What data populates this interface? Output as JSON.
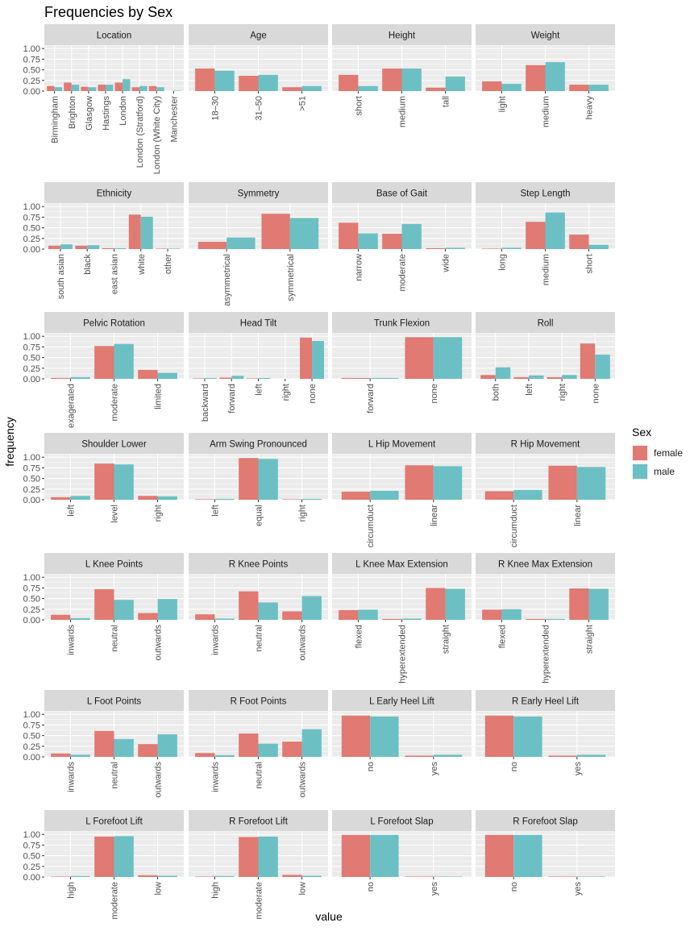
{
  "title": "Frequencies by Sex",
  "xlabel": "value",
  "ylabel": "frequency",
  "legend": {
    "title": "Sex",
    "position": "right",
    "entries": [
      {
        "label": "female",
        "color": "#E07A72"
      },
      {
        "label": "male",
        "color": "#6CC0C4"
      }
    ]
  },
  "y_ticks": [
    "0.00",
    "0.25",
    "0.50",
    "0.75",
    "1.00"
  ],
  "colors": {
    "female": "#E07A72",
    "male": "#6CC0C4",
    "panel_bg": "#EBEBEB",
    "strip_bg": "#D9D9D9",
    "grid": "#FFFFFF"
  },
  "chart_data": {
    "type": "bar",
    "ylim": [
      0,
      1.08
    ],
    "grid": true,
    "series_names": [
      "female",
      "male"
    ],
    "panels": [
      {
        "title": "Location",
        "categories": [
          "Birmingham",
          "Brighton",
          "Glasgow",
          "Hastings",
          "London",
          "London (Stratford)",
          "London (White City)",
          "Manchester"
        ],
        "female": [
          0.12,
          0.2,
          0.1,
          0.15,
          0.2,
          0.09,
          0.12,
          0.0
        ],
        "male": [
          0.09,
          0.15,
          0.09,
          0.15,
          0.28,
          0.12,
          0.09,
          0.01
        ]
      },
      {
        "title": "Age",
        "categories": [
          "18–30",
          "31–50",
          ">51"
        ],
        "female": [
          0.53,
          0.36,
          0.09
        ],
        "male": [
          0.48,
          0.38,
          0.12
        ]
      },
      {
        "title": "Height",
        "categories": [
          "short",
          "medium",
          "tall"
        ],
        "female": [
          0.38,
          0.53,
          0.08
        ],
        "male": [
          0.12,
          0.53,
          0.34
        ]
      },
      {
        "title": "Weight",
        "categories": [
          "light",
          "medium",
          "heavy"
        ],
        "female": [
          0.23,
          0.61,
          0.15
        ],
        "male": [
          0.17,
          0.68,
          0.15
        ]
      },
      {
        "title": "Ethnicity",
        "categories": [
          "south asian",
          "black",
          "east asian",
          "white",
          "other"
        ],
        "female": [
          0.08,
          0.08,
          0.02,
          0.81,
          0.01
        ],
        "male": [
          0.11,
          0.09,
          0.02,
          0.76,
          0.01
        ]
      },
      {
        "title": "Symmetry",
        "categories": [
          "asymmetrical",
          "symmetrical"
        ],
        "female": [
          0.17,
          0.83
        ],
        "male": [
          0.27,
          0.73
        ]
      },
      {
        "title": "Base of Gait",
        "categories": [
          "narrow",
          "moderate",
          "wide"
        ],
        "female": [
          0.62,
          0.36,
          0.02
        ],
        "male": [
          0.37,
          0.59,
          0.03
        ]
      },
      {
        "title": "Step Length",
        "categories": [
          "long",
          "medium",
          "short"
        ],
        "female": [
          0.01,
          0.64,
          0.34
        ],
        "male": [
          0.03,
          0.86,
          0.1
        ]
      },
      {
        "title": "Pelvic Rotation",
        "categories": [
          "exagerated",
          "moderate",
          "limited"
        ],
        "female": [
          0.02,
          0.77,
          0.21
        ],
        "male": [
          0.04,
          0.82,
          0.14
        ]
      },
      {
        "title": "Head Tilt",
        "categories": [
          "backward",
          "forward",
          "left",
          "right",
          "none"
        ],
        "female": [
          0.01,
          0.03,
          0.01,
          0.0,
          0.97
        ],
        "male": [
          0.02,
          0.07,
          0.02,
          0.0,
          0.89
        ]
      },
      {
        "title": "Trunk Flexion",
        "categories": [
          "forward",
          "none"
        ],
        "female": [
          0.02,
          0.98
        ],
        "male": [
          0.02,
          0.98
        ]
      },
      {
        "title": "Roll",
        "categories": [
          "both",
          "left",
          "right",
          "none"
        ],
        "female": [
          0.09,
          0.04,
          0.04,
          0.83
        ],
        "male": [
          0.27,
          0.08,
          0.09,
          0.57
        ]
      },
      {
        "title": "Shoulder Lower",
        "categories": [
          "left",
          "level",
          "right"
        ],
        "female": [
          0.06,
          0.85,
          0.09
        ],
        "male": [
          0.09,
          0.83,
          0.08
        ]
      },
      {
        "title": "Arm Swing Pronounced",
        "categories": [
          "left",
          "equal",
          "right"
        ],
        "female": [
          0.01,
          0.98,
          0.01
        ],
        "male": [
          0.02,
          0.96,
          0.02
        ]
      },
      {
        "title": "L Hip Movement",
        "categories": [
          "circumduct",
          "linear"
        ],
        "female": [
          0.19,
          0.81
        ],
        "male": [
          0.21,
          0.79
        ]
      },
      {
        "title": "R Hip Movement",
        "categories": [
          "circumduct",
          "linear"
        ],
        "female": [
          0.2,
          0.8
        ],
        "male": [
          0.23,
          0.77
        ]
      },
      {
        "title": "L Knee Points",
        "categories": [
          "inwards",
          "neutral",
          "outwards"
        ],
        "female": [
          0.12,
          0.72,
          0.16
        ],
        "male": [
          0.04,
          0.47,
          0.49
        ]
      },
      {
        "title": "R Knee Points",
        "categories": [
          "inwards",
          "neutral",
          "outwards"
        ],
        "female": [
          0.13,
          0.67,
          0.2
        ],
        "male": [
          0.03,
          0.41,
          0.56
        ]
      },
      {
        "title": "L Knee Max Extension",
        "categories": [
          "flexed",
          "hyperextended",
          "straight"
        ],
        "female": [
          0.23,
          0.02,
          0.75
        ],
        "male": [
          0.24,
          0.03,
          0.73
        ]
      },
      {
        "title": "R Knee Max Extension",
        "categories": [
          "flexed",
          "hyperextended",
          "straight"
        ],
        "female": [
          0.24,
          0.02,
          0.74
        ],
        "male": [
          0.25,
          0.02,
          0.73
        ]
      },
      {
        "title": "L Foot Points",
        "categories": [
          "inwards",
          "neutral",
          "outwards"
        ],
        "female": [
          0.08,
          0.61,
          0.3
        ],
        "male": [
          0.05,
          0.42,
          0.53
        ]
      },
      {
        "title": "R Foot Points",
        "categories": [
          "inwards",
          "neutral",
          "outwards"
        ],
        "female": [
          0.09,
          0.55,
          0.36
        ],
        "male": [
          0.04,
          0.31,
          0.65
        ]
      },
      {
        "title": "L Early Heel Lift",
        "categories": [
          "no",
          "yes"
        ],
        "female": [
          0.97,
          0.03
        ],
        "male": [
          0.95,
          0.05
        ]
      },
      {
        "title": "R Early Heel Lift",
        "categories": [
          "no",
          "yes"
        ],
        "female": [
          0.97,
          0.03
        ],
        "male": [
          0.95,
          0.05
        ]
      },
      {
        "title": "L Forefoot Lift",
        "categories": [
          "high",
          "moderate",
          "low"
        ],
        "female": [
          0.01,
          0.95,
          0.04
        ],
        "male": [
          0.02,
          0.96,
          0.03
        ]
      },
      {
        "title": "R Forefoot Lift",
        "categories": [
          "high",
          "moderate",
          "low"
        ],
        "female": [
          0.01,
          0.94,
          0.05
        ],
        "male": [
          0.02,
          0.95,
          0.03
        ]
      },
      {
        "title": "L Forefoot Slap",
        "categories": [
          "no",
          "yes"
        ],
        "female": [
          0.99,
          0.01
        ],
        "male": [
          0.99,
          0.01
        ]
      },
      {
        "title": "R Forefoot Slap",
        "categories": [
          "no",
          "yes"
        ],
        "female": [
          0.99,
          0.01
        ],
        "male": [
          0.99,
          0.01
        ]
      }
    ]
  }
}
